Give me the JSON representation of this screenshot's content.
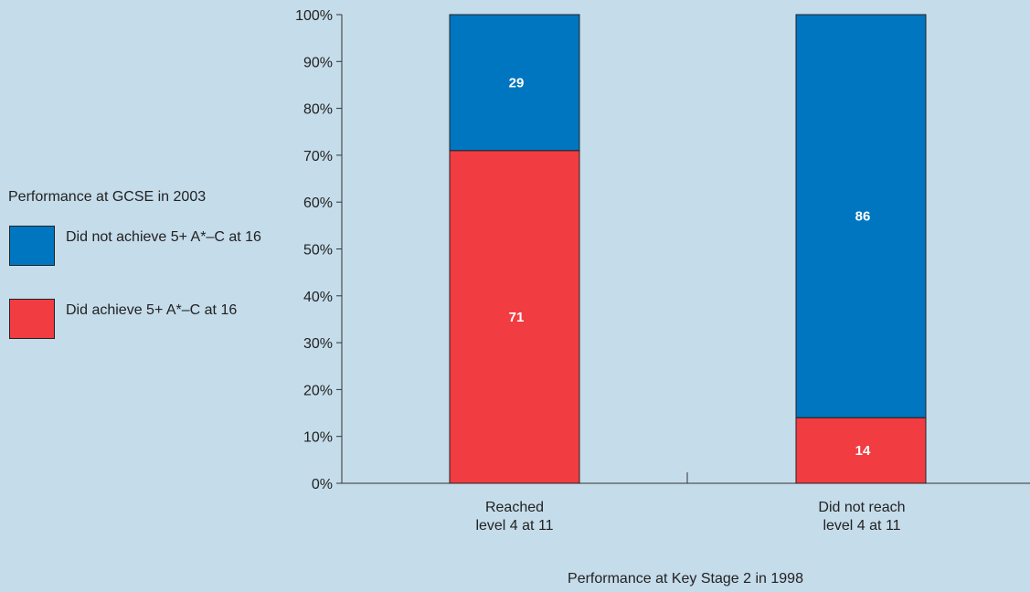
{
  "chart_data": {
    "type": "bar",
    "stacked": true,
    "categories": [
      "Reached\nlevel 4 at 11",
      "Did not reach\nlevel 4 at 11"
    ],
    "series": [
      {
        "name": "Did achieve 5+ A*–C at 16",
        "color": "#f13c42",
        "values": [
          71,
          14
        ]
      },
      {
        "name": "Did not achieve 5+ A*–C at 16",
        "color": "#0076c0",
        "values": [
          29,
          86
        ]
      }
    ],
    "xlabel": "Performance at Key Stage 2 in 1998",
    "ylabel": "",
    "ylim": [
      0,
      100
    ],
    "yticks": [
      "0%",
      "10%",
      "20%",
      "30%",
      "40%",
      "50%",
      "60%",
      "70%",
      "80%",
      "90%",
      "100%"
    ],
    "legend_title": "Performance at GCSE in 2003",
    "legend_position": "left",
    "grid": false
  },
  "legend": {
    "title": "Performance at GCSE in 2003",
    "items": [
      {
        "label": "Did not achieve 5+ A*–C at 16",
        "color": "#0076c0"
      },
      {
        "label": "Did achieve 5+ A*–C at 16",
        "color": "#f13c42"
      }
    ]
  }
}
